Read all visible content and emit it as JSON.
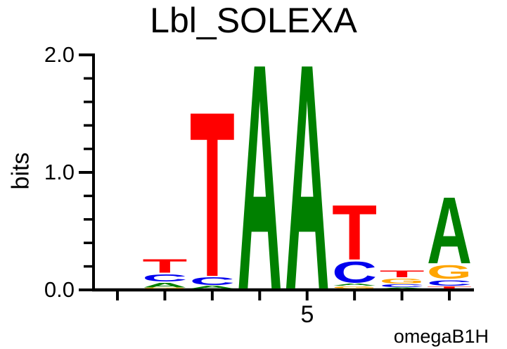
{
  "title": "Lbl_SOLEXA",
  "footer": "omegaB1H",
  "chart_data": {
    "type": "sequence-logo",
    "title": "Lbl_SOLEXA",
    "ylabel": "bits",
    "xlabel": "",
    "ylim": [
      0.0,
      2.0
    ],
    "y_minor_tick_step": 0.2,
    "grid": "off",
    "legend": "none",
    "credit_label": "omegaB1H",
    "y_ticks": [
      {
        "value": 2.0,
        "label": "2.0"
      },
      {
        "value": 1.0,
        "label": "1.0"
      },
      {
        "value": 0.0,
        "label": "0.0"
      }
    ],
    "x_labeled_tick": {
      "position": 5,
      "label": "5"
    },
    "colors": {
      "A": "#008000",
      "C": "#0000EE",
      "G": "#FFA500",
      "T": "#FF0000"
    },
    "positions": [
      {
        "index": 1,
        "letters": []
      },
      {
        "index": 2,
        "letters": [
          {
            "base": "G",
            "bits": 0.01
          },
          {
            "base": "A",
            "bits": 0.051
          },
          {
            "base": "C",
            "bits": 0.075
          },
          {
            "base": "T",
            "bits": 0.131
          }
        ]
      },
      {
        "index": 3,
        "letters": [
          {
            "base": "A",
            "bits": 0.03
          },
          {
            "base": "C",
            "bits": 0.078
          },
          {
            "base": "T",
            "bits": 1.458
          }
        ]
      },
      {
        "index": 4,
        "letters": [
          {
            "base": "A",
            "bits": 1.99
          }
        ]
      },
      {
        "index": 5,
        "letters": [
          {
            "base": "A",
            "bits": 1.99
          }
        ]
      },
      {
        "index": 6,
        "letters": [
          {
            "base": "G",
            "bits": 0.024
          },
          {
            "base": "A",
            "bits": 0.026
          },
          {
            "base": "C",
            "bits": 0.197
          },
          {
            "base": "T",
            "bits": 0.494
          }
        ]
      },
      {
        "index": 7,
        "letters": [
          {
            "base": "A",
            "bits": 0.012
          },
          {
            "base": "C",
            "bits": 0.03
          },
          {
            "base": "G",
            "bits": 0.054
          },
          {
            "base": "T",
            "bits": 0.072
          }
        ]
      },
      {
        "index": 8,
        "letters": [
          {
            "base": "T",
            "bits": 0.024
          },
          {
            "base": "C",
            "bits": 0.06
          },
          {
            "base": "G",
            "bits": 0.132
          },
          {
            "base": "A",
            "bits": 0.596
          }
        ]
      }
    ]
  }
}
